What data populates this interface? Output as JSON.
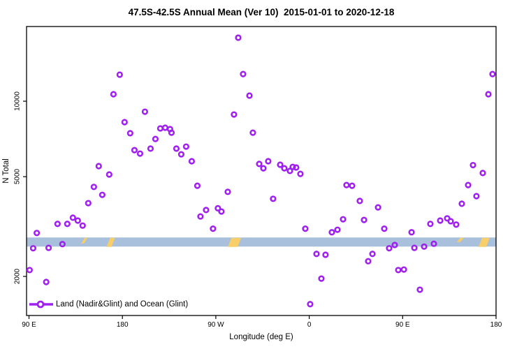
{
  "chart_data": {
    "type": "scatter",
    "title": "47.5S-42.5S Annual Mean (Ver 10)  2015-01-01 to 2020-12-18",
    "xlabel": "Longitude (deg E)",
    "ylabel": "N Total",
    "legend": {
      "label": "Land (Nadir&Glint) and Ocean (Glint)",
      "position": "bottom-left-inside"
    },
    "y_scale": "log",
    "ylim": [
      1390,
      19800
    ],
    "x_axis_continuous_deg_east": [
      90,
      540
    ],
    "x_ticks": [
      {
        "lon": 90,
        "label": "90 E"
      },
      {
        "lon": 180,
        "label": "180"
      },
      {
        "lon": 270,
        "label": "90 W"
      },
      {
        "lon": 360,
        "label": "0"
      },
      {
        "lon": 450,
        "label": "90 E"
      },
      {
        "lon": 540,
        "label": "180"
      }
    ],
    "y_ticks": [
      {
        "value": 2000,
        "label": "2000"
      },
      {
        "value": 5000,
        "label": "5000"
      },
      {
        "value": 10000,
        "label": "10000"
      }
    ],
    "grid": "off",
    "marker": {
      "shape": "open-circle",
      "color": "#A020F0"
    },
    "reference_band": {
      "value_from": 2630,
      "value_to": 2860,
      "color": "#A8C0DC"
    },
    "band_marks_color": "#F7CE68",
    "band_marks": [
      {
        "lon": 143.3,
        "w": 4,
        "h": 8
      },
      {
        "lon": 168.8,
        "w": 7,
        "h": 13
      },
      {
        "lon": 288.0,
        "w": 14,
        "h": 13
      },
      {
        "lon": 505.5,
        "w": 5,
        "h": 6
      },
      {
        "lon": 528.5,
        "w": 11,
        "h": 13
      }
    ],
    "points": [
      [
        90.6,
        2120
      ],
      [
        94,
        2590
      ],
      [
        97.5,
        2980
      ],
      [
        106.6,
        1900
      ],
      [
        108.9,
        2600
      ],
      [
        117.5,
        3240
      ],
      [
        122.2,
        2690
      ],
      [
        126.9,
        3240
      ],
      [
        132.3,
        3430
      ],
      [
        137,
        3340
      ],
      [
        141.7,
        3190
      ],
      [
        147.1,
        3920
      ],
      [
        152.5,
        4550
      ],
      [
        157.2,
        5510
      ],
      [
        160.6,
        4230
      ],
      [
        167.3,
        5100
      ],
      [
        171.4,
        10660
      ],
      [
        177.4,
        12760
      ],
      [
        182.1,
        8250
      ],
      [
        187.5,
        7450
      ],
      [
        191.6,
        6380
      ],
      [
        197,
        6180
      ],
      [
        201.7,
        9080
      ],
      [
        207.1,
        6470
      ],
      [
        211.8,
        7070
      ],
      [
        216.5,
        7790
      ],
      [
        221.2,
        7840
      ],
      [
        225.9,
        7740
      ],
      [
        227.3,
        7490
      ],
      [
        232,
        6470
      ],
      [
        236.7,
        6140
      ],
      [
        241.4,
        6590
      ],
      [
        246.8,
        5760
      ],
      [
        252.2,
        4600
      ],
      [
        255.2,
        3470
      ],
      [
        260.6,
        3680
      ],
      [
        267.3,
        3100
      ],
      [
        272,
        3740
      ],
      [
        275.4,
        3630
      ],
      [
        281.5,
        4350
      ],
      [
        287.5,
        8850
      ],
      [
        291.6,
        17930
      ],
      [
        296.3,
        12830
      ],
      [
        302.4,
        10530
      ],
      [
        305.7,
        7490
      ],
      [
        311.8,
        5620
      ],
      [
        315.8,
        5400
      ],
      [
        320.5,
        5760
      ],
      [
        325.2,
        4080
      ],
      [
        332,
        5580
      ],
      [
        336,
        5400
      ],
      [
        341.4,
        5270
      ],
      [
        344.1,
        5470
      ],
      [
        347.4,
        5440
      ],
      [
        351.5,
        5130
      ],
      [
        356.2,
        3100
      ],
      [
        360.9,
        1550
      ],
      [
        367,
        2460
      ],
      [
        371.7,
        1960
      ],
      [
        375.7,
        2440
      ],
      [
        381.8,
        3000
      ],
      [
        387.2,
        3070
      ],
      [
        392.6,
        3380
      ],
      [
        395.9,
        4630
      ],
      [
        401.3,
        4600
      ],
      [
        408.7,
        4000
      ],
      [
        412.8,
        3360
      ],
      [
        416.8,
        2300
      ],
      [
        420.9,
        2460
      ],
      [
        426.3,
        3770
      ],
      [
        432.3,
        3100
      ],
      [
        437,
        2590
      ],
      [
        442.4,
        2670
      ],
      [
        445.8,
        2120
      ],
      [
        451.2,
        2130
      ],
      [
        458.6,
        3000
      ],
      [
        461.3,
        2600
      ],
      [
        466.6,
        1770
      ],
      [
        470.7,
        2630
      ],
      [
        476.7,
        3240
      ],
      [
        480.1,
        2700
      ],
      [
        486.2,
        3340
      ],
      [
        492.9,
        3410
      ],
      [
        496.3,
        3320
      ],
      [
        501.6,
        3220
      ],
      [
        507,
        3900
      ],
      [
        513.1,
        4630
      ],
      [
        517.8,
        5560
      ],
      [
        521.1,
        4180
      ],
      [
        527.2,
        5170
      ],
      [
        532.6,
        10660
      ],
      [
        536.6,
        12830
      ]
    ]
  }
}
